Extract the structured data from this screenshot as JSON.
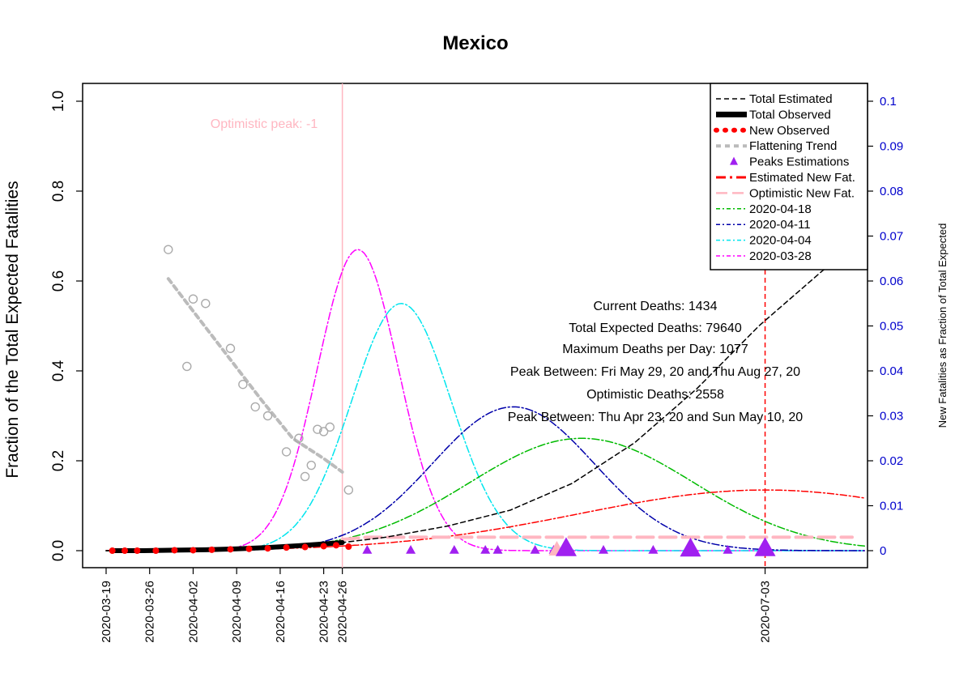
{
  "chart_data": {
    "type": "line",
    "title": "Mexico",
    "ylabel": "Fraction of the Total Expected Fatalities",
    "y2label": "New Fatalities as Fraction of Total Expected",
    "ylim": [
      0,
      1
    ],
    "y2lim": [
      0,
      0.1
    ],
    "yticks": [
      "0.0",
      "0.2",
      "0.4",
      "0.6",
      "0.8",
      "1.0"
    ],
    "y2ticks": [
      "0",
      "0.01",
      "0.02",
      "0.03",
      "0.04",
      "0.05",
      "0.06",
      "0.07",
      "0.08",
      "0.09",
      "0.1"
    ],
    "xticks": [
      {
        "date": "2020-03-19",
        "day": 0
      },
      {
        "date": "2020-03-26",
        "day": 7
      },
      {
        "date": "2020-04-02",
        "day": 14
      },
      {
        "date": "2020-04-09",
        "day": 21
      },
      {
        "date": "2020-04-16",
        "day": 28
      },
      {
        "date": "2020-04-23",
        "day": 35
      },
      {
        "date": "2020-04-26",
        "day": 38
      },
      {
        "date": "2020-07-03",
        "day": 106
      }
    ],
    "legend_position": "top-right",
    "legend": [
      "Total Estimated",
      "Total Observed",
      "New Observed",
      "Flattening Trend",
      "Peaks Estimations",
      "Estimated New Fat.",
      "Optimistic New Fat.",
      "2020-04-18",
      "2020-04-11",
      "2020-04-04",
      "2020-03-28"
    ],
    "annotations": [
      "Current Deaths: 1434",
      "Total Expected Deaths: 79640",
      "Maximum Deaths per Day: 1077",
      "Peak Between: Fri May 29, 20 and Thu Aug 27, 20",
      "Optimistic Deaths: 2558",
      "Peak Between: Thu Apr 23, 20 and Sun May 10, 20"
    ],
    "optimistic_peak_label": "Optimistic peak:  -1",
    "vlines": [
      {
        "day": 38,
        "color": "#ffb6c1"
      },
      {
        "day": 106,
        "color": "#ff0000"
      }
    ],
    "series": [
      {
        "name": "2020-03-28",
        "kind": "gaussian",
        "axis": "right",
        "peak": 0.067,
        "center": 40.5,
        "sigma": 6.5,
        "color": "#ff00ff"
      },
      {
        "name": "2020-04-04",
        "kind": "gaussian",
        "axis": "right",
        "peak": 0.055,
        "center": 47.5,
        "sigma": 8.0,
        "color": "#00e5ee"
      },
      {
        "name": "2020-04-11",
        "kind": "gaussian",
        "axis": "right",
        "peak": 0.032,
        "center": 65.5,
        "sigma": 13.0,
        "color": "#0000aa"
      },
      {
        "name": "2020-04-18",
        "kind": "gaussian",
        "axis": "right",
        "peak": 0.025,
        "center": 76.5,
        "sigma": 18.0,
        "color": "#00bb00"
      },
      {
        "name": "Estimated New Fat.",
        "kind": "gaussian",
        "axis": "right",
        "peak": 0.0135,
        "center": 106,
        "sigma": 30.0,
        "color": "#ff0000"
      },
      {
        "name": "Optimistic New Fat.",
        "kind": "points",
        "axis": "right",
        "color": "#ffb6c1",
        "x": [
          38,
          42,
          50,
          60,
          70,
          80,
          90,
          100,
          110,
          120,
          128
        ],
        "y": [
          0.0025,
          0.003,
          0.003,
          0.003,
          0.003,
          0.003,
          0.003,
          0.003,
          0.003,
          0.003,
          0.003
        ]
      },
      {
        "name": "Total Estimated",
        "kind": "points",
        "axis": "left",
        "color": "#000000",
        "x": [
          0,
          10,
          20,
          30,
          38,
          45,
          55,
          65,
          75,
          85,
          95,
          105,
          115,
          122
        ],
        "y": [
          0.0,
          0.002,
          0.004,
          0.01,
          0.018,
          0.03,
          0.055,
          0.09,
          0.15,
          0.24,
          0.36,
          0.5,
          0.62,
          0.7
        ]
      },
      {
        "name": "Total Observed",
        "kind": "points",
        "axis": "left",
        "color": "#000000",
        "x": [
          1,
          6,
          11,
          16,
          21,
          26,
          31,
          36,
          38
        ],
        "y": [
          0.0,
          0.0,
          0.001,
          0.002,
          0.004,
          0.007,
          0.011,
          0.016,
          0.018
        ]
      },
      {
        "name": "Flattening Trend",
        "kind": "points",
        "axis": "right",
        "color": "#bbbbbb",
        "x": [
          10,
          15,
          20,
          25,
          30,
          35,
          38
        ],
        "y": [
          0.0605,
          0.0515,
          0.0425,
          0.0335,
          0.025,
          0.0205,
          0.0175
        ]
      }
    ],
    "flattening_points": {
      "x": [
        10,
        13,
        14,
        16,
        20,
        22,
        24,
        26,
        29,
        31,
        32,
        33,
        34,
        35,
        36,
        39
      ],
      "y": [
        0.067,
        0.041,
        0.056,
        0.055,
        0.045,
        0.037,
        0.032,
        0.03,
        0.022,
        0.025,
        0.0165,
        0.019,
        0.027,
        0.0265,
        0.0275,
        0.0135
      ]
    },
    "new_observed": {
      "x": [
        1,
        3,
        5,
        8,
        11,
        14,
        17,
        20,
        23,
        26,
        29,
        32,
        35,
        37,
        39
      ],
      "y": [
        0.0,
        0.0,
        0.0,
        0.0,
        0.0001,
        0.0001,
        0.0002,
        0.0003,
        0.0004,
        0.0005,
        0.0007,
        0.0008,
        0.001,
        0.0012,
        0.0009
      ]
    },
    "peak_estimations": {
      "small": [
        42,
        49,
        56,
        61,
        63,
        69,
        72,
        80,
        88,
        100
      ],
      "large": [
        {
          "day": 74,
          "value": 0.0003
        },
        {
          "day": 94,
          "value": 0.0002
        },
        {
          "day": 106,
          "value": 0.0003
        }
      ]
    }
  }
}
